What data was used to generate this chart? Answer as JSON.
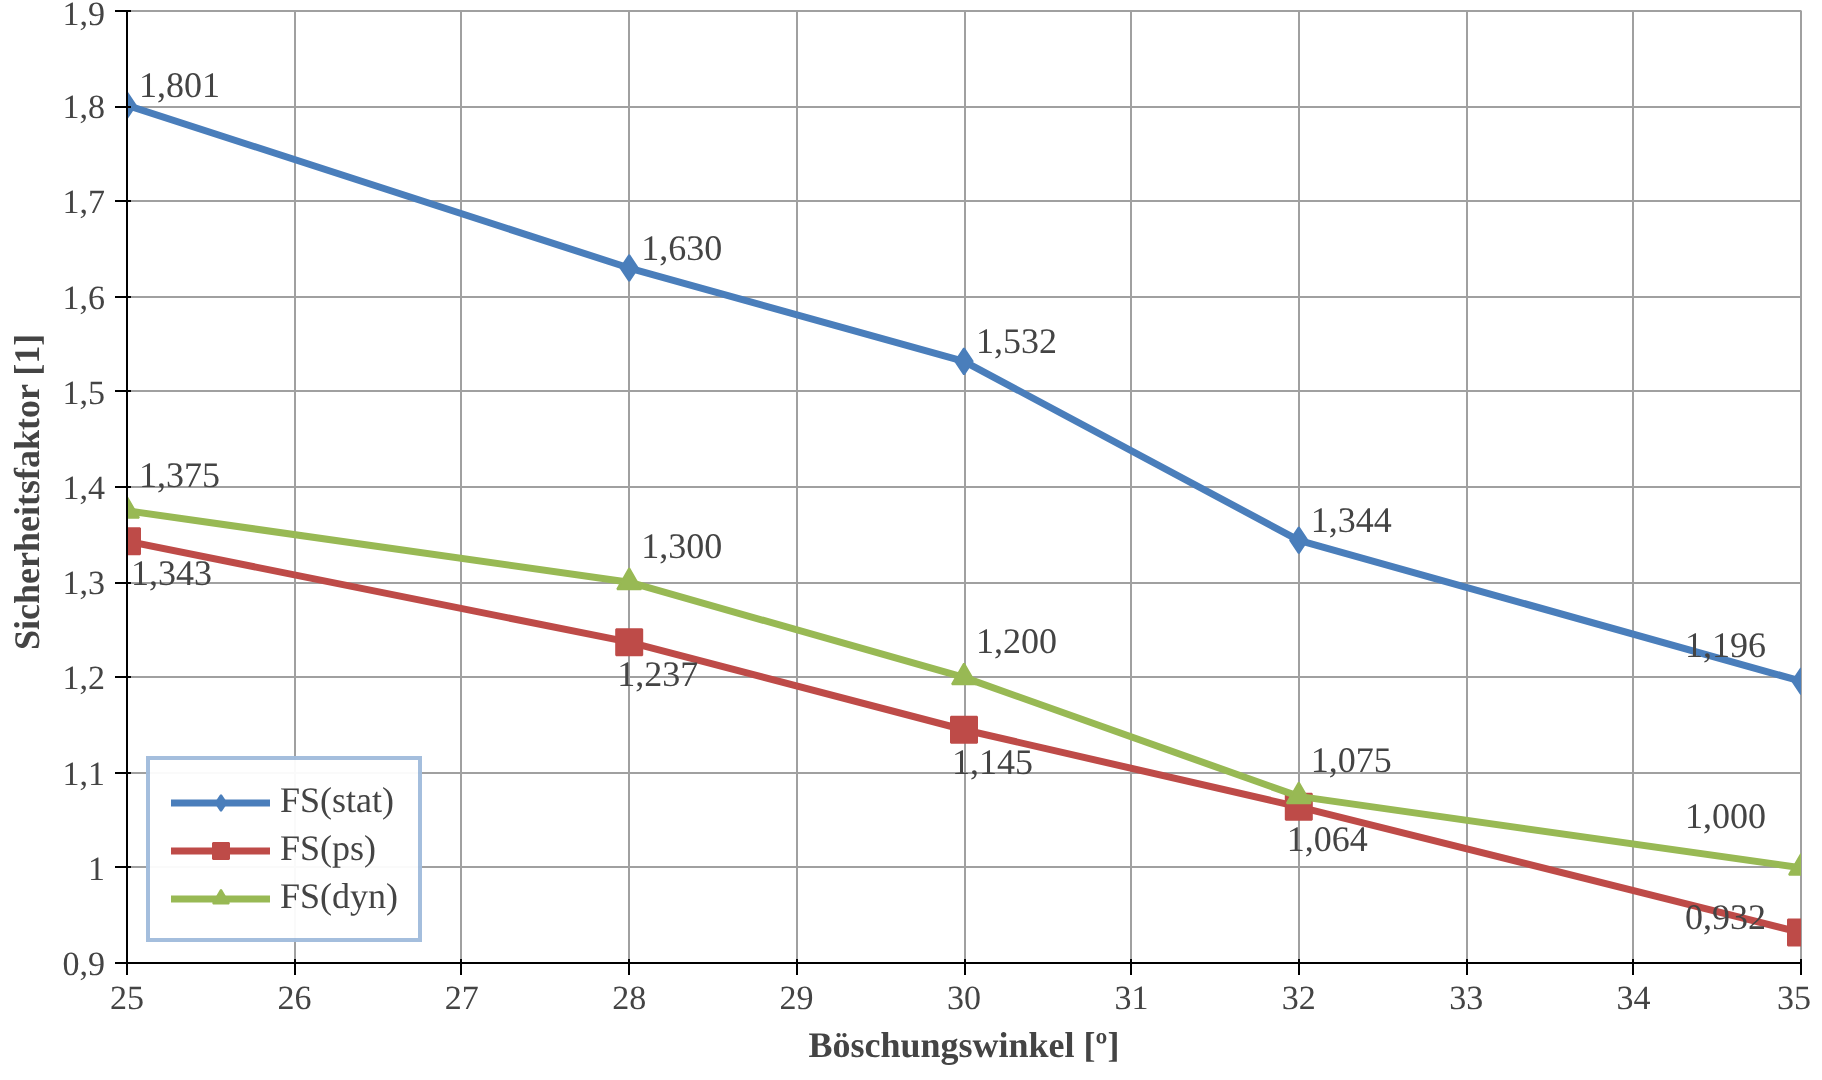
{
  "chart_data": {
    "type": "line",
    "xlabel": "Böschungswinkel [º]",
    "ylabel": "Sicherheitsfaktor  [1]",
    "x": [
      25,
      28,
      30,
      32,
      35
    ],
    "xlim": [
      25,
      35
    ],
    "xticks": [
      25,
      26,
      27,
      28,
      29,
      30,
      31,
      32,
      33,
      34,
      35
    ],
    "ylim": [
      0.9,
      1.9
    ],
    "yticks": [
      {
        "value": 0.9,
        "label": "0,9"
      },
      1,
      {
        "value": 1.1,
        "label": "1,1"
      },
      {
        "value": 1.2,
        "label": "1,2"
      },
      {
        "value": 1.3,
        "label": "1,3"
      },
      {
        "value": 1.4,
        "label": "1,4"
      },
      {
        "value": 1.5,
        "label": "1,5"
      },
      {
        "value": 1.6,
        "label": "1,6"
      },
      {
        "value": 1.7,
        "label": "1,7"
      },
      {
        "value": 1.8,
        "label": "1,8"
      },
      {
        "value": 1.9,
        "label": "1,9"
      }
    ],
    "grid": true,
    "legend": "bottom left",
    "line_style": "solid",
    "series": [
      {
        "name": "FS(stat)",
        "color": "#4a7ebb",
        "marker": "diamond",
        "values": [
          1.801,
          1.63,
          1.532,
          1.344,
          1.196
        ],
        "value_labels": [
          "1,801",
          "1,630",
          "1,532",
          "1,344",
          "1,196"
        ]
      },
      {
        "name": "FS(ps)",
        "color": "#be4b48",
        "marker": "square",
        "values": [
          1.343,
          1.237,
          1.145,
          1.064,
          0.932
        ],
        "value_labels": [
          "1,343",
          "1,237",
          "1,145",
          "1,064",
          "0,932"
        ]
      },
      {
        "name": "FS(dyn)",
        "color": "#98b954",
        "marker": "triangle",
        "values": [
          1.375,
          1.3,
          1.2,
          1.075,
          1.0
        ],
        "value_labels": [
          "1,375",
          "1,300",
          "1,200",
          "1,075",
          "1,000"
        ]
      }
    ]
  }
}
